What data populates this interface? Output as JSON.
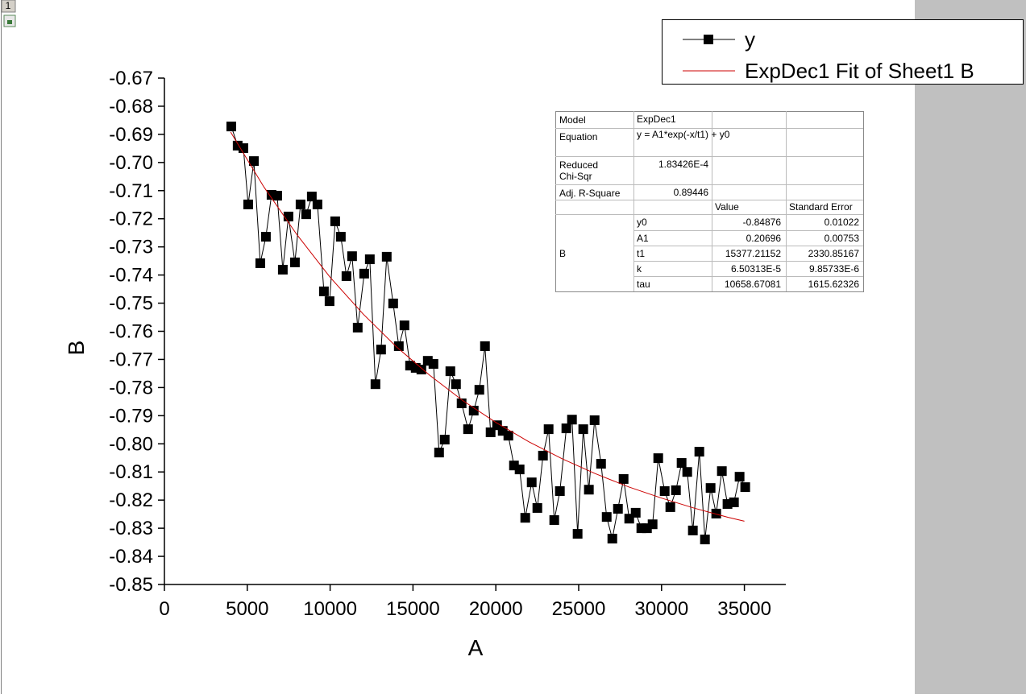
{
  "window_tab": "1",
  "chart_data": {
    "type": "line",
    "x_label": "A",
    "y_label": "B",
    "xlim": [
      0,
      37500
    ],
    "ylim": [
      -0.85,
      -0.67
    ],
    "xticks": [
      0,
      5000,
      10000,
      15000,
      20000,
      25000,
      30000,
      35000
    ],
    "yticks": [
      -0.67,
      -0.68,
      -0.69,
      {
        "value": -0.7,
        "label": "-0.70"
      },
      -0.71,
      -0.72,
      -0.73,
      -0.74,
      -0.75,
      -0.76,
      -0.77,
      -0.78,
      -0.79,
      {
        "value": -0.8,
        "label": "-0.80"
      },
      -0.81,
      -0.82,
      -0.83,
      -0.84,
      -0.85
    ],
    "series": [
      {
        "name": "y",
        "color": "#000000",
        "markers": true,
        "x": [
          4035,
          4420,
          4765,
          5055,
          5400,
          5785,
          6125,
          6465,
          6805,
          7145,
          7485,
          7875,
          8215,
          8555,
          8895,
          9235,
          9625,
          9965,
          10305,
          10645,
          10985,
          11325,
          11665,
          12055,
          12395,
          12735,
          13075,
          13415,
          13805,
          14145,
          14485,
          14825,
          15165,
          15505,
          15895,
          16235,
          16575,
          16915,
          17255,
          17595,
          17935,
          18325,
          18665,
          19005,
          19345,
          19685,
          20075,
          20415,
          20755,
          21095,
          21435,
          21775,
          22165,
          22505,
          22845,
          23185,
          23525,
          23865,
          24255,
          24595,
          24935,
          25275,
          25615,
          25960,
          26350,
          26690,
          27030,
          27370,
          27710,
          28050,
          28440,
          28780,
          29120,
          29460,
          29800,
          30190,
          30530,
          30870,
          31210,
          31550,
          31890,
          32280,
          32620,
          32960,
          33300,
          33640,
          33980,
          34370,
          34710,
          35050
        ],
        "values": [
          -0.6872,
          -0.694,
          -0.6949,
          -0.7149,
          -0.6995,
          -0.7358,
          -0.7264,
          -0.7115,
          -0.7118,
          -0.7381,
          -0.7192,
          -0.7355,
          -0.7149,
          -0.7184,
          -0.7121,
          -0.7149,
          -0.7458,
          -0.7493,
          -0.7209,
          -0.7264,
          -0.7404,
          -0.7333,
          -0.7587,
          -0.7395,
          -0.7344,
          -0.7788,
          -0.7665,
          -0.7335,
          -0.7501,
          -0.7653,
          -0.7579,
          -0.7722,
          -0.773,
          -0.7736,
          -0.7705,
          -0.7716,
          -0.8031,
          -0.7985,
          -0.7742,
          -0.7788,
          -0.7856,
          -0.7948,
          -0.7882,
          -0.7808,
          -0.7653,
          -0.7959,
          -0.7934,
          -0.7954,
          -0.7971,
          -0.8077,
          -0.8091,
          -0.8263,
          -0.8137,
          -0.8228,
          -0.8042,
          -0.7948,
          -0.8271,
          -0.8168,
          -0.7945,
          -0.7914,
          -0.832,
          -0.7948,
          -0.8163,
          -0.7916,
          -0.8071,
          -0.826,
          -0.8337,
          -0.8231,
          -0.8125,
          -0.8266,
          -0.8245,
          -0.83,
          -0.83,
          -0.8286,
          -0.8051,
          -0.8168,
          -0.8225,
          -0.8165,
          -0.8068,
          -0.81,
          -0.8308,
          -0.8028,
          -0.834,
          -0.8157,
          -0.8248,
          -0.8097,
          -0.8214,
          -0.8208,
          -0.8117,
          -0.8154
        ]
      },
      {
        "name": "ExpDec1 Fit of Sheet1 B",
        "color": "#cc0000",
        "markers": false,
        "x": [
          4000,
          6000,
          8000,
          10000,
          12000,
          14000,
          16000,
          18000,
          20000,
          22000,
          24000,
          26000,
          28000,
          30000,
          32000,
          34000,
          35000
        ],
        "values": [
          -0.6892,
          -0.7087,
          -0.7257,
          -0.7408,
          -0.7539,
          -0.7655,
          -0.7756,
          -0.7846,
          -0.7924,
          -0.7993,
          -0.8053,
          -0.8106,
          -0.8153,
          -0.8193,
          -0.8229,
          -0.8261,
          -0.8275
        ]
      }
    ],
    "fit_table": {
      "rows": [
        [
          "Model",
          "ExpDec1"
        ],
        [
          "Equation",
          "y = A1*exp(-x/t1) + y0"
        ],
        [
          "Reduced\nChi-Sqr",
          "1.83426E-4"
        ],
        [
          "Adj. R-Square",
          "0.89446"
        ]
      ],
      "header": [
        "Value",
        "Standard Error"
      ],
      "group": "B",
      "params": [
        [
          "y0",
          "-0.84876",
          "0.01022"
        ],
        [
          "A1",
          "0.20696",
          "0.00753"
        ],
        [
          "t1",
          "15377.21152",
          "2330.85167"
        ],
        [
          "k",
          "6.50313E-5",
          "9.85733E-6"
        ],
        [
          "tau",
          "10658.67081",
          "1615.62326"
        ]
      ]
    }
  }
}
